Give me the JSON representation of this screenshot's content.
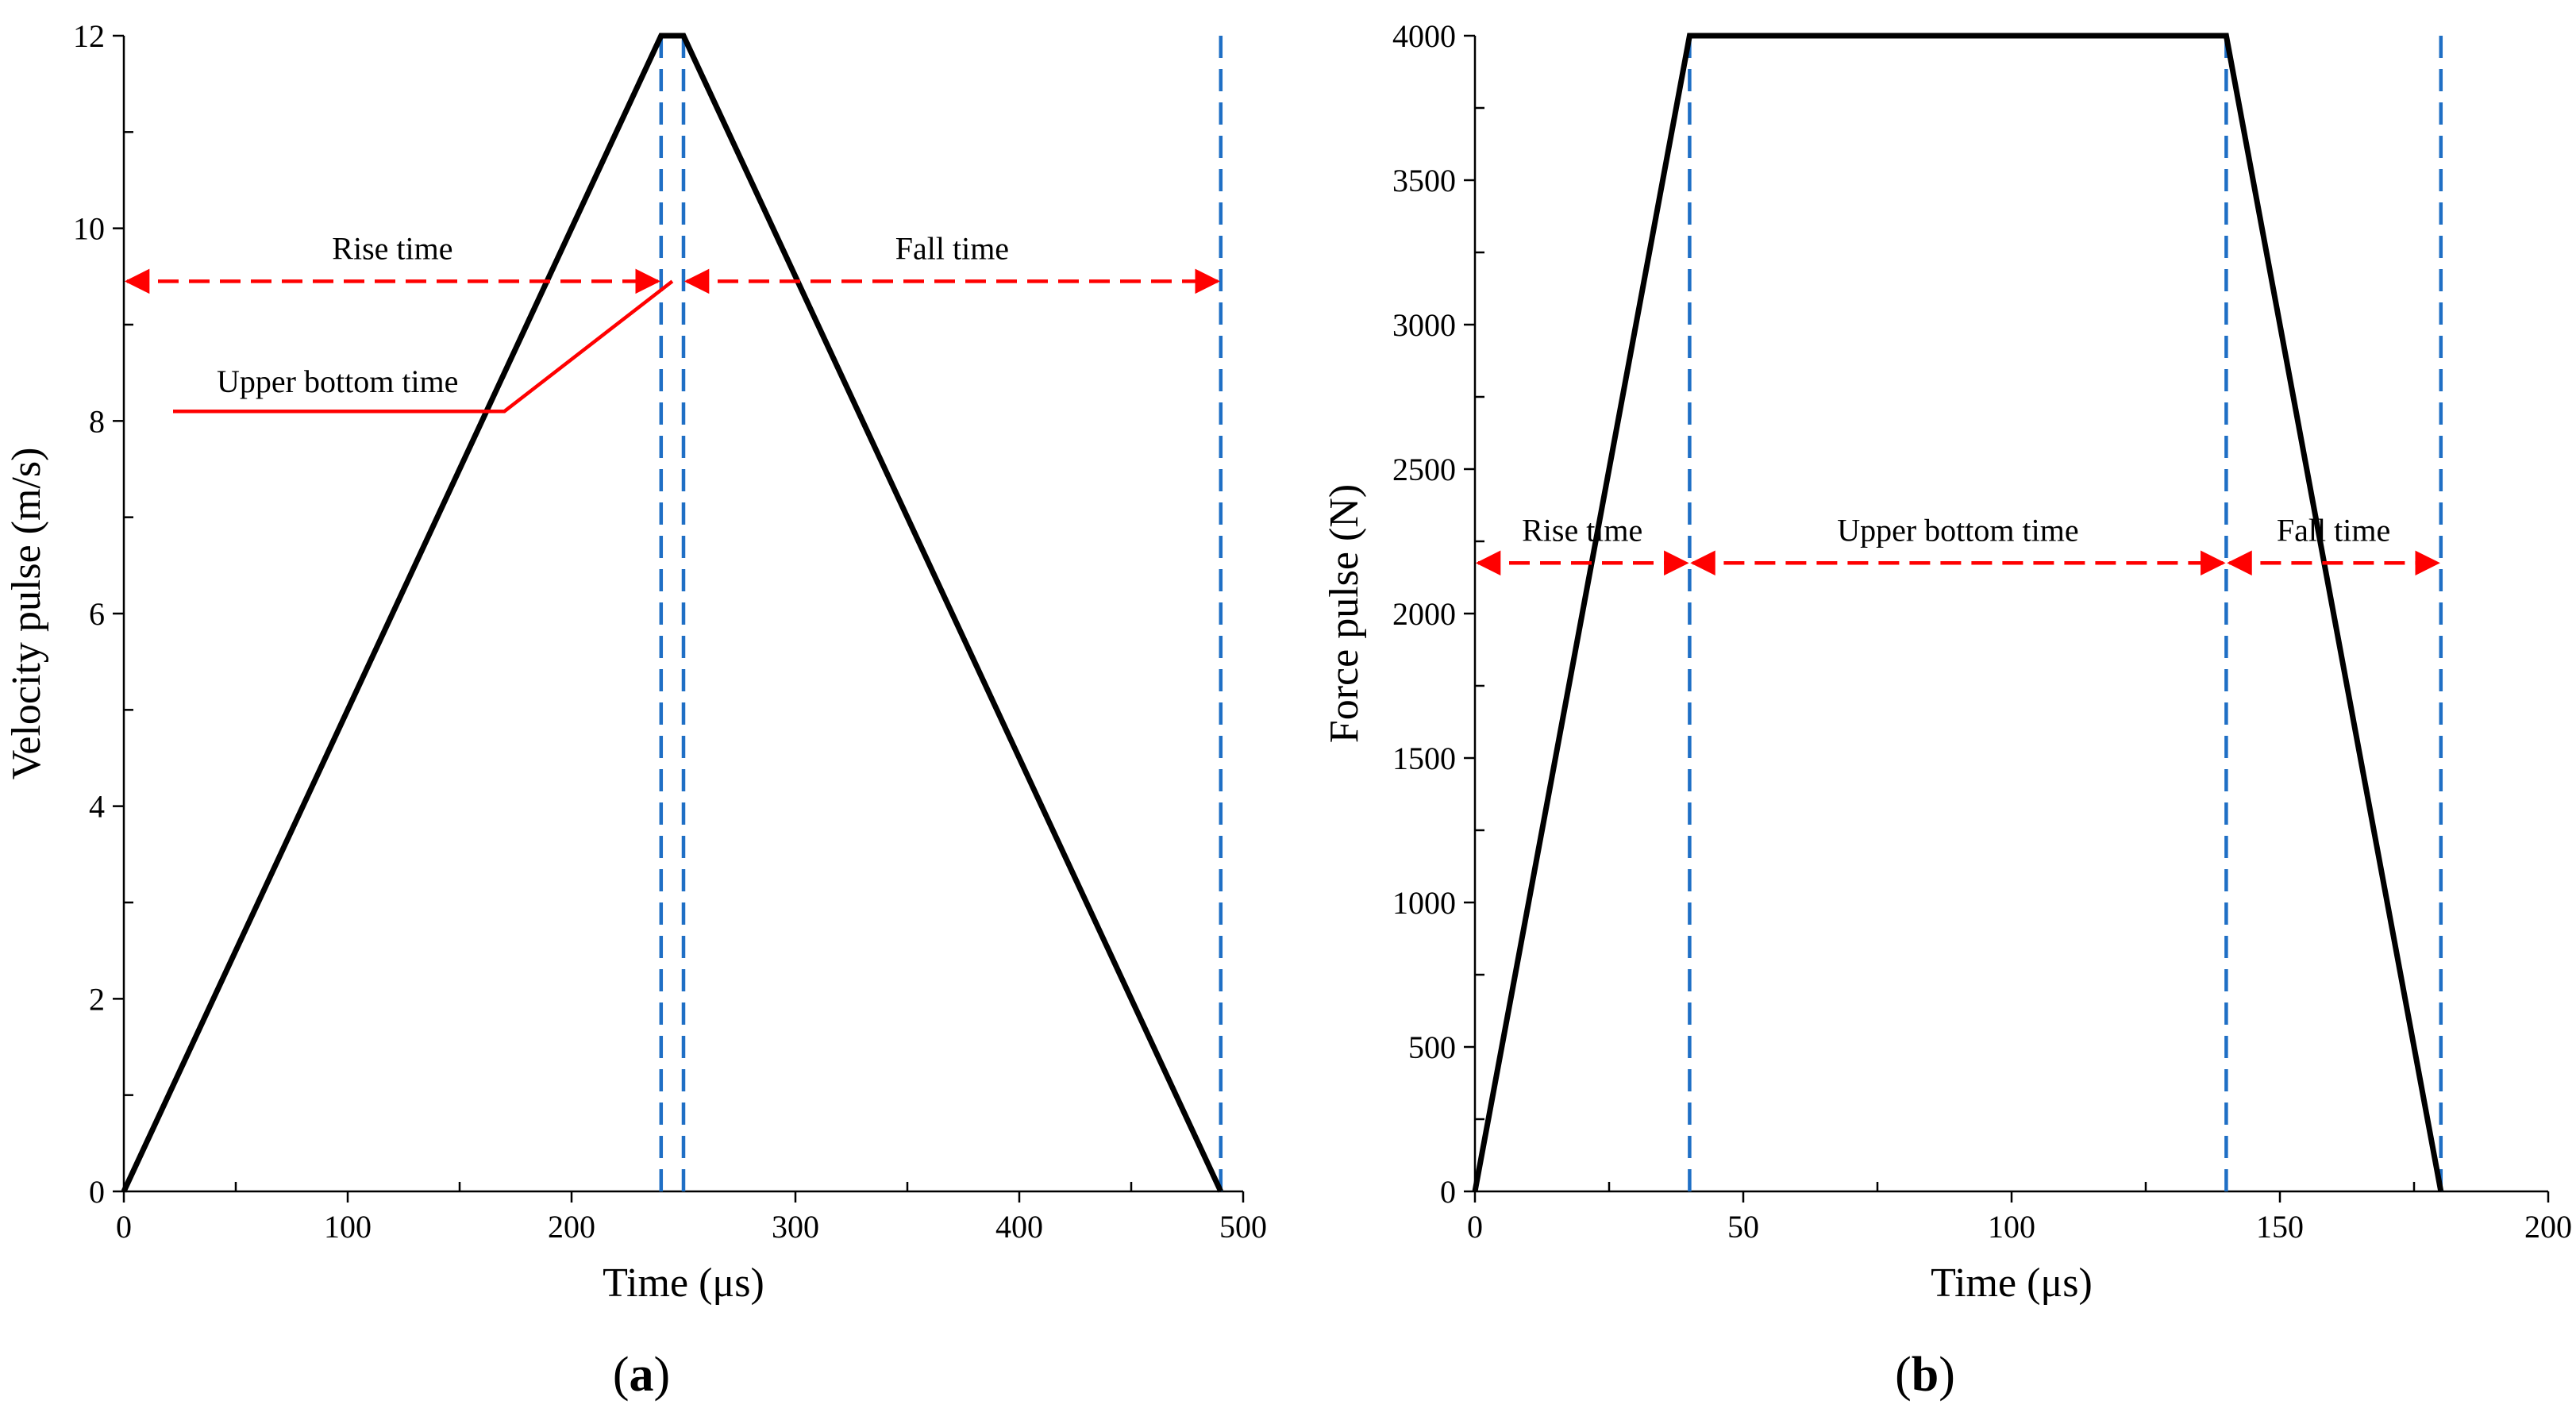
{
  "figure": {
    "panels": [
      "(a)",
      "(b)"
    ],
    "colors": {
      "series": "#000000",
      "guide": "#1f6fc5",
      "annotation": "#ff0000"
    }
  },
  "chart_data": [
    {
      "type": "line",
      "panel_label": "a",
      "title": "",
      "xlabel": "Time (μs)",
      "ylabel": "Velocity pulse (m/s)",
      "xlim": [
        0,
        500
      ],
      "ylim": [
        0,
        12
      ],
      "xticks": [
        0,
        100,
        200,
        300,
        400,
        500
      ],
      "yticks": [
        0,
        2,
        4,
        6,
        8,
        10,
        12
      ],
      "series": [
        {
          "name": "Velocity pulse",
          "x": [
            0,
            240,
            250,
            490
          ],
          "y": [
            0,
            12,
            12,
            0
          ]
        }
      ],
      "vlines": [
        240,
        250,
        490
      ],
      "arrows": [
        {
          "label": "Rise time",
          "x_from": 0,
          "x_to": 240,
          "y": 9.45
        },
        {
          "label": "Fall time",
          "x_from": 250,
          "x_to": 490,
          "y": 9.45
        }
      ],
      "callout": {
        "label": "Upper bottom time",
        "path_x": [
          22,
          170,
          245
        ],
        "path_y": [
          8.1,
          8.1,
          9.45
        ]
      }
    },
    {
      "type": "line",
      "panel_label": "b",
      "title": "",
      "xlabel": "Time (μs)",
      "ylabel": "Force pulse (N)",
      "xlim": [
        0,
        200
      ],
      "ylim": [
        0,
        4000
      ],
      "xticks": [
        0,
        50,
        100,
        150,
        200
      ],
      "yticks": [
        0,
        500,
        1000,
        1500,
        2000,
        2500,
        3000,
        3500,
        4000
      ],
      "series": [
        {
          "name": "Force pulse",
          "x": [
            0,
            40,
            140,
            180
          ],
          "y": [
            0,
            4000,
            4000,
            0
          ]
        }
      ],
      "vlines": [
        40,
        140,
        180
      ],
      "arrows": [
        {
          "label": "Rise time",
          "x_from": 0,
          "x_to": 40,
          "y": 2175
        },
        {
          "label": "Upper bottom time",
          "x_from": 40,
          "x_to": 140,
          "y": 2175
        },
        {
          "label": "Fall time",
          "x_from": 140,
          "x_to": 180,
          "y": 2175
        }
      ]
    }
  ]
}
